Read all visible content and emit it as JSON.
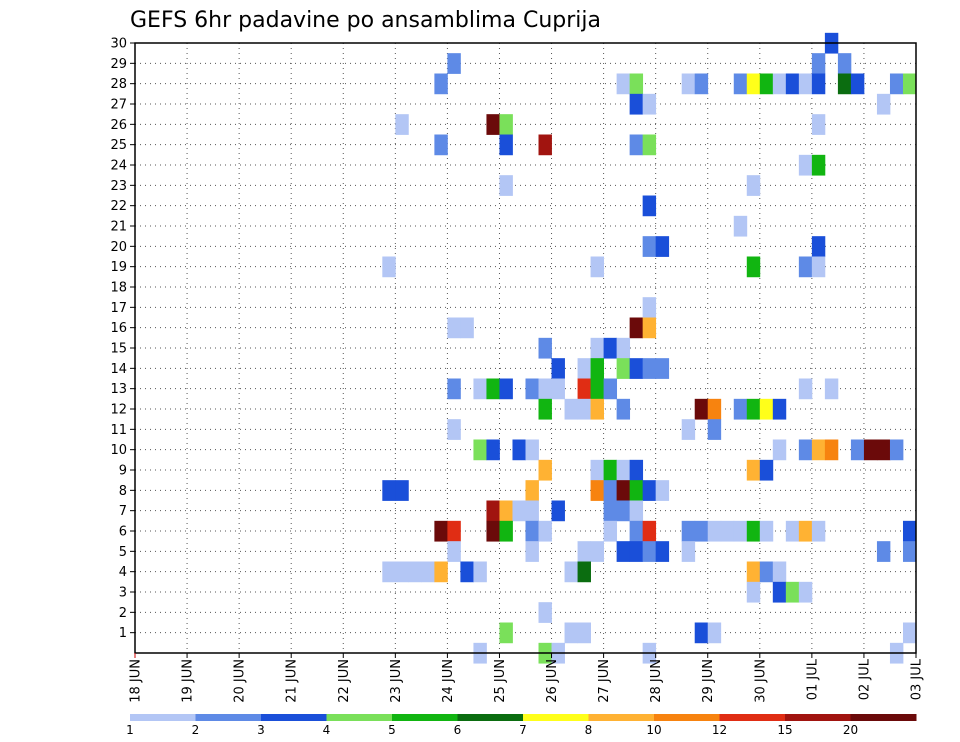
{
  "chart_data": {
    "type": "heatmap",
    "title": "GEFS 6hr padavine po ansamblima Cuprija",
    "xlabel": "",
    "ylabel": "",
    "x_tick_labels": [
      "18 JUN",
      "19 JUN",
      "20 JUN",
      "21 JUN",
      "22 JUN",
      "23 JUN",
      "24 JUN",
      "25 JUN",
      "26 JUN",
      "27 JUN",
      "28 JUN",
      "29 JUN",
      "30 JUN",
      "01 JUL",
      "02 JUL",
      "03 JUL"
    ],
    "y_tick_labels": [
      "1",
      "2",
      "3",
      "4",
      "5",
      "6",
      "7",
      "8",
      "9",
      "10",
      "11",
      "12",
      "13",
      "14",
      "15",
      "16",
      "17",
      "18",
      "19",
      "20",
      "21",
      "22",
      "23",
      "24",
      "25",
      "26",
      "27",
      "28",
      "29",
      "30"
    ],
    "xlim_days": [
      0,
      15
    ],
    "ylim": [
      0,
      30
    ],
    "step_days": 0.25,
    "grid": true,
    "colorbar": {
      "tick_labels": [
        "1",
        "2",
        "3",
        "4",
        "5",
        "6",
        "7",
        "8",
        "10",
        "12",
        "15",
        "20"
      ],
      "colors": [
        "#b3c6f5",
        "#5e8ae6",
        "#1a4fd9",
        "#7ae05a",
        "#11b511",
        "#0b6d10",
        "#ffff1a",
        "#ffb233",
        "#f7830f",
        "#e02d14",
        "#a1140f",
        "#6b0a0a"
      ]
    },
    "cells": [
      [
        13.25,
        30,
        3
      ],
      [
        6.0,
        29,
        2
      ],
      [
        13.0,
        29,
        2
      ],
      [
        13.5,
        29,
        2
      ],
      [
        5.75,
        28,
        2
      ],
      [
        9.25,
        28,
        1
      ],
      [
        9.5,
        28,
        4
      ],
      [
        10.5,
        28,
        1
      ],
      [
        10.75,
        28,
        2
      ],
      [
        11.5,
        28,
        2
      ],
      [
        11.75,
        28,
        7
      ],
      [
        12.0,
        28,
        5
      ],
      [
        12.25,
        28,
        1
      ],
      [
        12.5,
        28,
        3
      ],
      [
        12.75,
        28,
        1
      ],
      [
        13.0,
        28,
        3
      ],
      [
        13.5,
        28,
        6
      ],
      [
        13.75,
        28,
        3
      ],
      [
        14.5,
        28,
        2
      ],
      [
        14.75,
        28,
        4
      ],
      [
        9.5,
        27,
        3
      ],
      [
        9.75,
        27,
        1
      ],
      [
        14.25,
        27,
        1
      ],
      [
        5.0,
        26,
        1
      ],
      [
        6.75,
        26,
        12
      ],
      [
        7.0,
        26,
        4
      ],
      [
        13.0,
        26,
        1
      ],
      [
        5.75,
        25,
        2
      ],
      [
        7.0,
        25,
        3
      ],
      [
        7.75,
        25,
        11
      ],
      [
        9.5,
        25,
        2
      ],
      [
        9.75,
        25,
        4
      ],
      [
        12.75,
        24,
        1
      ],
      [
        13.0,
        24,
        5
      ],
      [
        7.0,
        23,
        1
      ],
      [
        11.75,
        23,
        1
      ],
      [
        9.75,
        22,
        3
      ],
      [
        11.5,
        21,
        1
      ],
      [
        9.75,
        20,
        2
      ],
      [
        10.0,
        20,
        3
      ],
      [
        13.0,
        20,
        3
      ],
      [
        4.75,
        19,
        1
      ],
      [
        8.75,
        19,
        1
      ],
      [
        11.75,
        19,
        5
      ],
      [
        12.75,
        19,
        2
      ],
      [
        13.0,
        19,
        1
      ],
      [
        9.75,
        17,
        1
      ],
      [
        6.0,
        16,
        1
      ],
      [
        6.25,
        16,
        1
      ],
      [
        9.5,
        16,
        12
      ],
      [
        9.75,
        16,
        8
      ],
      [
        7.75,
        15,
        2
      ],
      [
        8.75,
        15,
        1
      ],
      [
        9.0,
        15,
        3
      ],
      [
        9.25,
        15,
        1
      ],
      [
        8.0,
        14,
        3
      ],
      [
        8.5,
        14,
        1
      ],
      [
        8.75,
        14,
        5
      ],
      [
        9.25,
        14,
        4
      ],
      [
        9.5,
        14,
        3
      ],
      [
        9.75,
        14,
        2
      ],
      [
        10.0,
        14,
        2
      ],
      [
        6.0,
        13,
        2
      ],
      [
        6.5,
        13,
        1
      ],
      [
        6.75,
        13,
        5
      ],
      [
        7.0,
        13,
        3
      ],
      [
        7.5,
        13,
        2
      ],
      [
        7.75,
        13,
        1
      ],
      [
        8.0,
        13,
        1
      ],
      [
        8.5,
        13,
        10
      ],
      [
        8.75,
        13,
        5
      ],
      [
        9.0,
        13,
        2
      ],
      [
        12.75,
        13,
        1
      ],
      [
        13.25,
        13,
        1
      ],
      [
        7.75,
        12,
        5
      ],
      [
        8.25,
        12,
        1
      ],
      [
        8.5,
        12,
        1
      ],
      [
        8.75,
        12,
        8
      ],
      [
        9.25,
        12,
        2
      ],
      [
        10.75,
        12,
        12
      ],
      [
        11.0,
        12,
        9
      ],
      [
        11.5,
        12,
        2
      ],
      [
        11.75,
        12,
        5
      ],
      [
        12.0,
        12,
        7
      ],
      [
        12.25,
        12,
        3
      ],
      [
        6.0,
        11,
        1
      ],
      [
        10.5,
        11,
        1
      ],
      [
        11.0,
        11,
        2
      ],
      [
        6.5,
        10,
        4
      ],
      [
        6.75,
        10,
        3
      ],
      [
        7.25,
        10,
        3
      ],
      [
        7.5,
        10,
        1
      ],
      [
        12.25,
        10,
        1
      ],
      [
        12.75,
        10,
        2
      ],
      [
        13.0,
        10,
        8
      ],
      [
        13.25,
        10,
        9
      ],
      [
        13.75,
        10,
        2
      ],
      [
        14.0,
        10,
        12
      ],
      [
        14.25,
        10,
        12
      ],
      [
        14.5,
        10,
        2
      ],
      [
        7.75,
        9,
        8
      ],
      [
        8.75,
        9,
        1
      ],
      [
        9.0,
        9,
        5
      ],
      [
        9.25,
        9,
        1
      ],
      [
        9.5,
        9,
        3
      ],
      [
        11.75,
        9,
        8
      ],
      [
        12.0,
        9,
        3
      ],
      [
        4.75,
        8,
        3
      ],
      [
        5.0,
        8,
        3
      ],
      [
        7.5,
        8,
        8
      ],
      [
        8.75,
        8,
        9
      ],
      [
        9.0,
        8,
        2
      ],
      [
        9.25,
        8,
        12
      ],
      [
        9.5,
        8,
        5
      ],
      [
        9.75,
        8,
        3
      ],
      [
        10.0,
        8,
        1
      ],
      [
        6.75,
        7,
        11
      ],
      [
        7.0,
        7,
        8
      ],
      [
        7.25,
        7,
        1
      ],
      [
        7.5,
        7,
        1
      ],
      [
        8.0,
        7,
        3
      ],
      [
        9.0,
        7,
        2
      ],
      [
        9.25,
        7,
        2
      ],
      [
        9.5,
        7,
        1
      ],
      [
        5.75,
        6,
        12
      ],
      [
        6.0,
        6,
        10
      ],
      [
        6.75,
        6,
        12
      ],
      [
        7.0,
        6,
        5
      ],
      [
        7.5,
        6,
        2
      ],
      [
        7.75,
        6,
        1
      ],
      [
        9.0,
        6,
        1
      ],
      [
        9.5,
        6,
        2
      ],
      [
        9.75,
        6,
        10
      ],
      [
        10.5,
        6,
        2
      ],
      [
        10.75,
        6,
        2
      ],
      [
        11.0,
        6,
        1
      ],
      [
        11.25,
        6,
        1
      ],
      [
        11.5,
        6,
        1
      ],
      [
        11.75,
        6,
        5
      ],
      [
        12.0,
        6,
        1
      ],
      [
        12.5,
        6,
        1
      ],
      [
        12.75,
        6,
        8
      ],
      [
        13.0,
        6,
        1
      ],
      [
        14.75,
        6,
        3
      ],
      [
        6.0,
        5,
        1
      ],
      [
        7.5,
        5,
        1
      ],
      [
        8.5,
        5,
        1
      ],
      [
        8.75,
        5,
        1
      ],
      [
        9.25,
        5,
        3
      ],
      [
        9.5,
        5,
        3
      ],
      [
        9.75,
        5,
        2
      ],
      [
        10.0,
        5,
        3
      ],
      [
        10.5,
        5,
        1
      ],
      [
        14.25,
        5,
        2
      ],
      [
        14.75,
        5,
        2
      ],
      [
        4.75,
        4,
        1
      ],
      [
        5.0,
        4,
        1
      ],
      [
        5.25,
        4,
        1
      ],
      [
        5.5,
        4,
        1
      ],
      [
        5.75,
        4,
        8
      ],
      [
        6.25,
        4,
        3
      ],
      [
        6.5,
        4,
        1
      ],
      [
        8.25,
        4,
        1
      ],
      [
        8.5,
        4,
        6
      ],
      [
        11.75,
        4,
        8
      ],
      [
        12.0,
        4,
        2
      ],
      [
        12.25,
        4,
        1
      ],
      [
        11.75,
        3,
        1
      ],
      [
        12.25,
        3,
        3
      ],
      [
        12.5,
        3,
        4
      ],
      [
        12.75,
        3,
        1
      ],
      [
        7.75,
        2,
        1
      ],
      [
        7.0,
        1,
        4
      ],
      [
        8.25,
        1,
        1
      ],
      [
        8.5,
        1,
        1
      ],
      [
        10.75,
        1,
        3
      ],
      [
        11.0,
        1,
        1
      ],
      [
        14.75,
        1,
        1
      ],
      [
        6.5,
        0,
        1
      ],
      [
        7.75,
        0,
        4
      ],
      [
        8.0,
        0,
        1
      ],
      [
        9.75,
        0,
        1
      ],
      [
        14.5,
        0,
        1
      ]
    ]
  }
}
